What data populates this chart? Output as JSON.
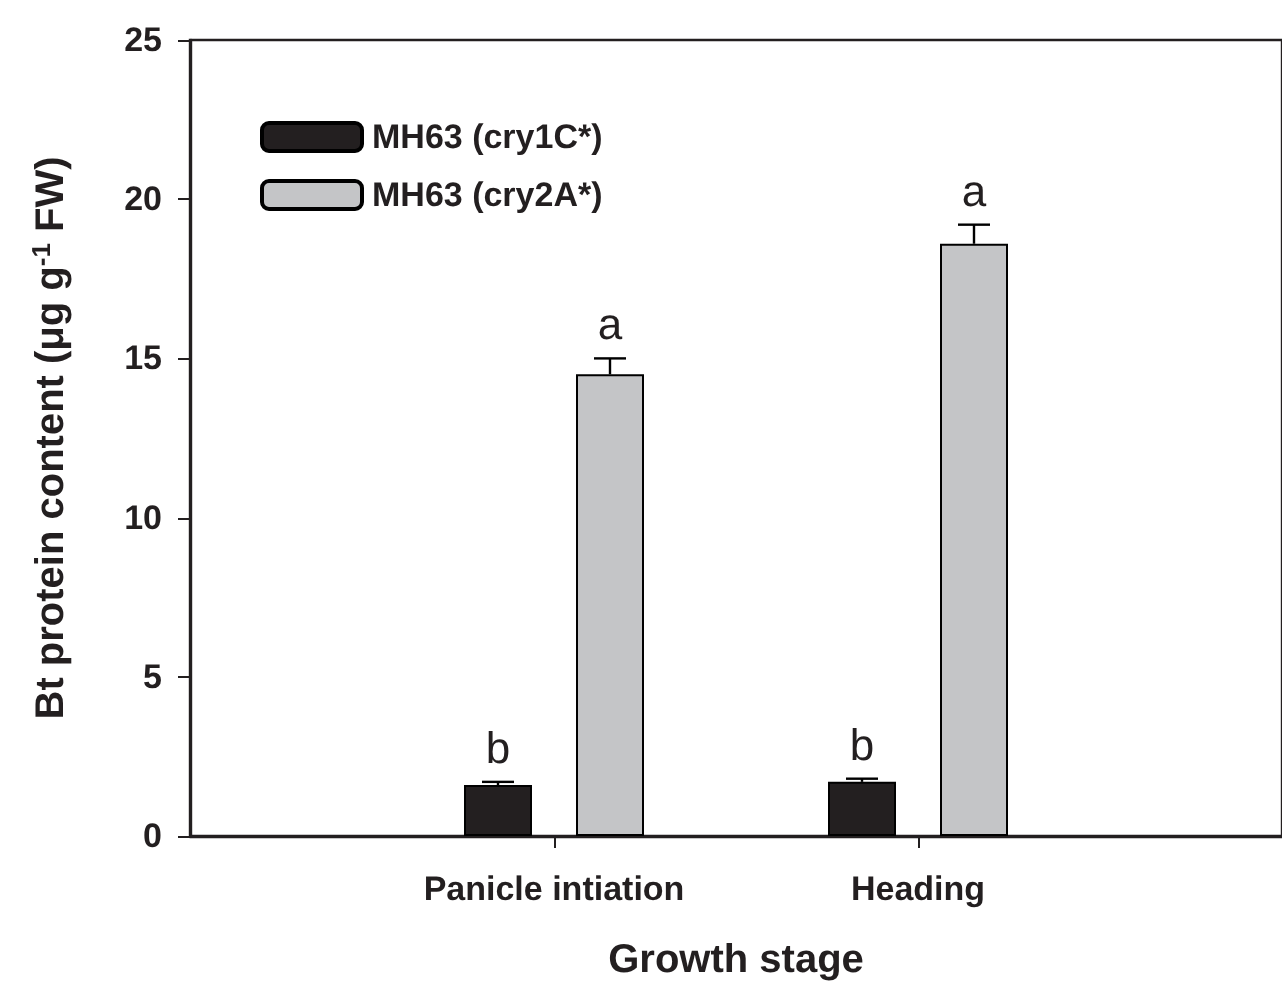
{
  "chart_data": {
    "type": "bar",
    "categories": [
      "Panicle intiation",
      "Heading"
    ],
    "xlabel": "Growth stage",
    "ylabel": "Bt protein content (μg g$^{-1}$ FW)",
    "series": [
      {
        "name": "MH63 (cry1C*)",
        "color": "#231f20",
        "values": [
          1.6,
          1.7
        ],
        "errors": [
          0.1,
          0.1
        ]
      },
      {
        "name": "MH63 (cry2A*)",
        "color": "#c4c5c7",
        "values": [
          14.5,
          18.6
        ],
        "errors": [
          0.5,
          0.6
        ]
      }
    ],
    "ylim": [
      0,
      25
    ],
    "yticks": [
      0,
      5,
      10,
      15,
      20,
      25
    ],
    "legend": "top left",
    "annotations": [
      "b",
      "a",
      "b",
      "a"
    ]
  }
}
